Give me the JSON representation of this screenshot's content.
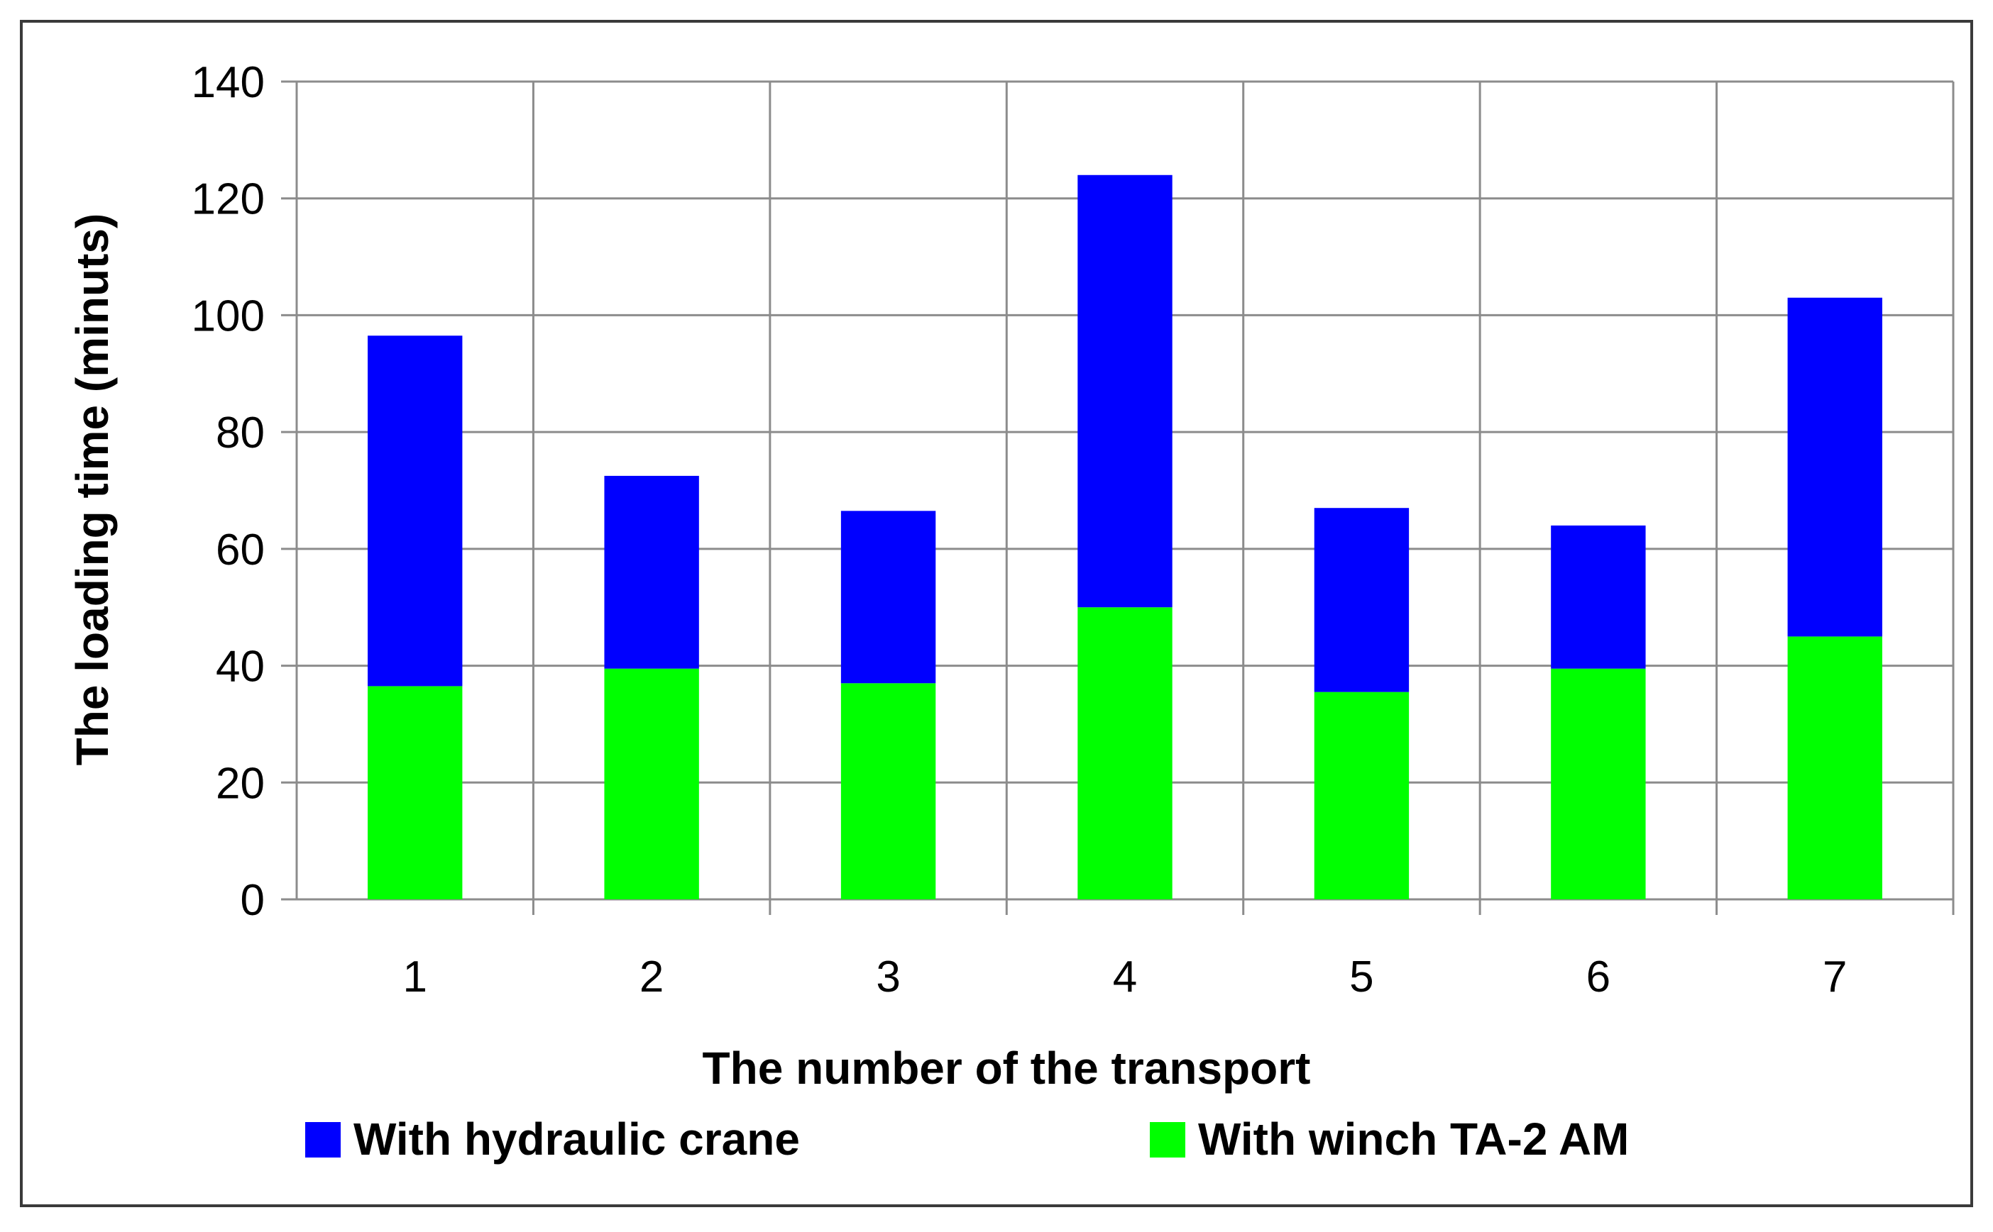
{
  "chart_data": {
    "type": "bar",
    "stacked": true,
    "categories": [
      "1",
      "2",
      "3",
      "4",
      "5",
      "6",
      "7"
    ],
    "series": [
      {
        "name": "With winch TA-2 AM",
        "color": "#00ff00",
        "values": [
          36.5,
          39.5,
          37,
          50,
          35.5,
          39.5,
          45
        ]
      },
      {
        "name": "With hydraulic crane",
        "color": "#0000ff",
        "values": [
          60,
          33,
          29.5,
          74,
          31.5,
          24.5,
          58
        ]
      }
    ],
    "legend_order": [
      1,
      0
    ],
    "xlabel": "The number of the transport",
    "ylabel": "The loading time (minuts)",
    "ylim": [
      0,
      140
    ],
    "yticks": [
      "0",
      "20",
      "40",
      "60",
      "80",
      "100",
      "120",
      "140"
    ],
    "grid": true,
    "legend_position": "bottom",
    "colors": {
      "grid": "#8c8c8c",
      "frame": "#3a3a3a"
    }
  }
}
